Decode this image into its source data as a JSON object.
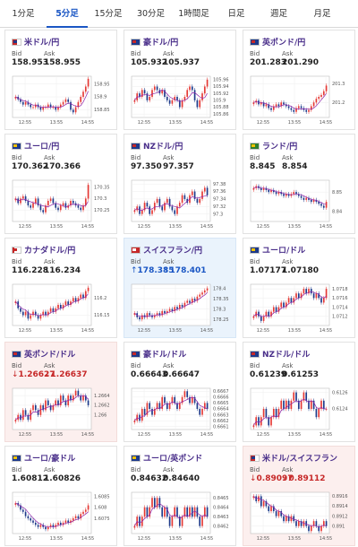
{
  "tabs": [
    {
      "label": "1分足",
      "active": false
    },
    {
      "label": "5分足",
      "active": true
    },
    {
      "label": "15分足",
      "active": false
    },
    {
      "label": "30分足",
      "active": false
    },
    {
      "label": "1時間足",
      "active": false
    },
    {
      "label": "日足",
      "active": false
    },
    {
      "label": "週足",
      "active": false
    },
    {
      "label": "月足",
      "active": false
    }
  ],
  "common": {
    "bid_label": "Bid",
    "ask_label": "Ask",
    "x_ticks": [
      "12:55",
      "13:55",
      "14:55"
    ]
  },
  "colors": {
    "up_candle": "#e53935",
    "down_candle": "#1e3a8a",
    "ma_line": "#8e24aa",
    "tab_active": "#1a56c4",
    "pair_name": "#4a2f8a"
  },
  "cards": [
    {
      "pair": "米ドル/円",
      "flag": "us",
      "bid": "158.953",
      "ask": "158.955",
      "trend": "",
      "highlight": "",
      "chart_data": {
        "type": "candlestick",
        "y_ticks": [
          "158.95",
          "158.9",
          "158.85"
        ],
        "ylim": [
          158.82,
          158.98
        ],
        "close": [
          158.9,
          158.89,
          158.88,
          158.87,
          158.88,
          158.87,
          158.86,
          158.86,
          158.87,
          158.86,
          158.85,
          158.86,
          158.86,
          158.87,
          158.86,
          158.86,
          158.85,
          158.86,
          158.87,
          158.88,
          158.89,
          158.88,
          158.85,
          158.84,
          158.86,
          158.88,
          158.9,
          158.92,
          158.94,
          158.97
        ]
      }
    },
    {
      "pair": "豪ドル/円",
      "flag": "au",
      "bid": "105.932",
      "ask": "105.937",
      "trend": "",
      "highlight": "",
      "chart_data": {
        "type": "candlestick",
        "y_ticks": [
          "105.96",
          "105.94",
          "105.92",
          "105.9",
          "105.88",
          "105.86"
        ],
        "ylim": [
          105.85,
          105.97
        ],
        "close": [
          105.9,
          105.92,
          105.91,
          105.93,
          105.92,
          105.9,
          105.91,
          105.93,
          105.94,
          105.93,
          105.92,
          105.93,
          105.91,
          105.9,
          105.89,
          105.9,
          105.91,
          105.9,
          105.88,
          105.9,
          105.91,
          105.93,
          105.94,
          105.93,
          105.9,
          105.88,
          105.9,
          105.92,
          105.94,
          105.96
        ]
      }
    },
    {
      "pair": "英ポンド/円",
      "flag": "uk",
      "bid": "201.283",
      "ask": "201.290",
      "trend": "",
      "highlight": "",
      "chart_data": {
        "type": "candlestick",
        "y_ticks": [
          "201.3",
          "201.2"
        ],
        "ylim": [
          201.12,
          201.34
        ],
        "close": [
          201.2,
          201.21,
          201.19,
          201.2,
          201.18,
          201.19,
          201.17,
          201.16,
          201.18,
          201.19,
          201.18,
          201.2,
          201.19,
          201.18,
          201.17,
          201.16,
          201.15,
          201.17,
          201.18,
          201.17,
          201.16,
          201.15,
          201.16,
          201.18,
          201.2,
          201.22,
          201.23,
          201.24,
          201.26,
          201.29
        ]
      }
    },
    {
      "pair": "ユーロ/円",
      "flag": "eu",
      "bid": "170.362",
      "ask": "170.366",
      "trend": "",
      "highlight": "",
      "chart_data": {
        "type": "candlestick",
        "y_ticks": [
          "170.35",
          "170.3",
          "170.25"
        ],
        "ylim": [
          170.2,
          170.38
        ],
        "close": [
          170.3,
          170.28,
          170.3,
          170.31,
          170.29,
          170.27,
          170.26,
          170.28,
          170.3,
          170.27,
          170.25,
          170.24,
          170.27,
          170.29,
          170.3,
          170.28,
          170.26,
          170.25,
          170.27,
          170.28,
          170.26,
          170.27,
          170.29,
          170.28,
          170.27,
          170.26,
          170.25,
          170.27,
          170.3,
          170.36
        ]
      }
    },
    {
      "pair": "NZドル/円",
      "flag": "nz",
      "bid": "97.350",
      "ask": "97.357",
      "trend": "",
      "highlight": "",
      "chart_data": {
        "type": "candlestick",
        "y_ticks": [
          "97.38",
          "97.36",
          "97.34",
          "97.32",
          "97.3"
        ],
        "ylim": [
          97.28,
          97.39
        ],
        "close": [
          97.31,
          97.32,
          97.3,
          97.31,
          97.33,
          97.32,
          97.3,
          97.31,
          97.33,
          97.34,
          97.32,
          97.31,
          97.33,
          97.34,
          97.32,
          97.31,
          97.3,
          97.32,
          97.33,
          97.35,
          97.34,
          97.33,
          97.35,
          97.36,
          97.34,
          97.33,
          97.34,
          97.36,
          97.37,
          97.35
        ]
      }
    },
    {
      "pair": "ランド/円",
      "flag": "za",
      "bid": "8.845",
      "ask": "8.854",
      "trend": "",
      "highlight": "",
      "chart_data": {
        "type": "candlestick",
        "y_ticks": [
          "8.85",
          "8.84"
        ],
        "ylim": [
          8.835,
          8.856
        ],
        "close": [
          8.852,
          8.853,
          8.852,
          8.851,
          8.852,
          8.851,
          8.85,
          8.851,
          8.85,
          8.849,
          8.85,
          8.849,
          8.848,
          8.849,
          8.848,
          8.849,
          8.85,
          8.849,
          8.848,
          8.847,
          8.846,
          8.847,
          8.846,
          8.845,
          8.846,
          8.845,
          8.844,
          8.843,
          8.842,
          8.845
        ]
      }
    },
    {
      "pair": "カナダドル/円",
      "flag": "ca",
      "bid": "116.228",
      "ask": "116.234",
      "trend": "",
      "highlight": "",
      "chart_data": {
        "type": "candlestick",
        "y_ticks": [
          "116.2",
          "116.15"
        ],
        "ylim": [
          116.12,
          116.24
        ],
        "close": [
          116.19,
          116.17,
          116.16,
          116.15,
          116.16,
          116.14,
          116.15,
          116.16,
          116.15,
          116.14,
          116.15,
          116.16,
          116.15,
          116.16,
          116.17,
          116.16,
          116.17,
          116.18,
          116.17,
          116.18,
          116.19,
          116.18,
          116.19,
          116.2,
          116.19,
          116.2,
          116.21,
          116.2,
          116.22,
          116.23
        ]
      }
    },
    {
      "pair": "スイスフラン/円",
      "flag": "ch",
      "bid": "178.385",
      "ask": "178.401",
      "trend": "up",
      "highlight": "blue",
      "chart_data": {
        "type": "candlestick",
        "y_ticks": [
          "178.4",
          "178.35",
          "178.3",
          "178.25"
        ],
        "ylim": [
          178.22,
          178.42
        ],
        "close": [
          178.28,
          178.26,
          178.25,
          178.27,
          178.26,
          178.28,
          178.27,
          178.26,
          178.27,
          178.28,
          178.27,
          178.29,
          178.28,
          178.29,
          178.3,
          178.29,
          178.31,
          178.3,
          178.32,
          178.31,
          178.33,
          178.34,
          178.33,
          178.35,
          178.34,
          178.36,
          178.37,
          178.38,
          178.39,
          178.4
        ]
      }
    },
    {
      "pair": "ユーロ/ドル",
      "flag": "eu",
      "bid": "1.07177",
      "ask": "1.07180",
      "trend": "",
      "highlight": "",
      "chart_data": {
        "type": "candlestick",
        "y_ticks": [
          "1.0718",
          "1.0716",
          "1.0714",
          "1.0712"
        ],
        "ylim": [
          1.071,
          1.0719
        ],
        "close": [
          1.0712,
          1.0713,
          1.0712,
          1.0711,
          1.0712,
          1.0713,
          1.0712,
          1.0713,
          1.0714,
          1.0713,
          1.0714,
          1.0715,
          1.0714,
          1.0715,
          1.0716,
          1.0715,
          1.0716,
          1.0717,
          1.0716,
          1.0717,
          1.0718,
          1.0717,
          1.0718,
          1.0717,
          1.0716,
          1.0717,
          1.0716,
          1.0715,
          1.0716,
          1.0718
        ]
      }
    },
    {
      "pair": "英ポンド/ドル",
      "flag": "uk",
      "bid": "1.26627",
      "ask": "1.26637",
      "trend": "down",
      "highlight": "red",
      "chart_data": {
        "type": "candlestick",
        "y_ticks": [
          "1.2664",
          "1.2662",
          "1.266"
        ],
        "ylim": [
          1.2657,
          1.26655
        ],
        "close": [
          1.2659,
          1.266,
          1.2659,
          1.2661,
          1.266,
          1.2659,
          1.2661,
          1.2662,
          1.2661,
          1.266,
          1.2662,
          1.2661,
          1.2663,
          1.2662,
          1.2661,
          1.2662,
          1.2663,
          1.2662,
          1.2664,
          1.2663,
          1.2662,
          1.2664,
          1.2663,
          1.2664,
          1.2665,
          1.2664,
          1.2663,
          1.2664,
          1.2663,
          1.2662
        ]
      }
    },
    {
      "pair": "豪ドル/ドル",
      "flag": "au",
      "bid": "0.66643",
      "ask": "0.66647",
      "trend": "",
      "highlight": "",
      "chart_data": {
        "type": "candlestick",
        "y_ticks": [
          "0.6667",
          "0.6666",
          "0.6665",
          "0.6664",
          "0.6663",
          "0.6662",
          "0.6661"
        ],
        "ylim": [
          0.66605,
          0.66675
        ],
        "close": [
          0.6662,
          0.6663,
          0.6662,
          0.6664,
          0.6663,
          0.6665,
          0.6664,
          0.6663,
          0.6664,
          0.6665,
          0.6664,
          0.6666,
          0.6665,
          0.6664,
          0.6665,
          0.6666,
          0.6665,
          0.6664,
          0.6665,
          0.6666,
          0.6667,
          0.6666,
          0.6665,
          0.6666,
          0.6665,
          0.6664,
          0.6663,
          0.6664,
          0.6665,
          0.6664
        ]
      }
    },
    {
      "pair": "NZドル/ドル",
      "flag": "nz",
      "bid": "0.61239",
      "ask": "0.61253",
      "trend": "",
      "highlight": "",
      "chart_data": {
        "type": "candlestick",
        "y_ticks": [
          "0.6126",
          "0.6124"
        ],
        "ylim": [
          0.61215,
          0.61265
        ],
        "close": [
          0.6122,
          0.6123,
          0.6122,
          0.6123,
          0.6124,
          0.6123,
          0.6122,
          0.6123,
          0.6124,
          0.6123,
          0.6124,
          0.6125,
          0.6124,
          0.6125,
          0.6124,
          0.6125,
          0.6126,
          0.6125,
          0.6124,
          0.6125,
          0.6126,
          0.6125,
          0.6124,
          0.6125,
          0.6124,
          0.6123,
          0.6124,
          0.6125,
          0.6124,
          0.6124
        ]
      }
    },
    {
      "pair": "ユーロ/豪ドル",
      "flag": "eu",
      "bid": "1.60812",
      "ask": "1.60826",
      "trend": "",
      "highlight": "",
      "chart_data": {
        "type": "candlestick",
        "y_ticks": [
          "1.6085",
          "1.608",
          "1.6075"
        ],
        "ylim": [
          1.6068,
          1.6087
        ],
        "close": [
          1.6082,
          1.6081,
          1.6079,
          1.6078,
          1.6076,
          1.6075,
          1.6074,
          1.6073,
          1.6072,
          1.6071,
          1.6072,
          1.6071,
          1.607,
          1.6071,
          1.6072,
          1.6071,
          1.6072,
          1.6073,
          1.6072,
          1.6073,
          1.6074,
          1.6073,
          1.6074,
          1.6075,
          1.6076,
          1.6075,
          1.6077,
          1.6078,
          1.6079,
          1.6081
        ]
      }
    },
    {
      "pair": "ユーロ/英ポンド",
      "flag": "eu",
      "bid": "0.84632",
      "ask": "0.84640",
      "trend": "",
      "highlight": "",
      "chart_data": {
        "type": "candlestick",
        "y_ticks": [
          "0.8465",
          "0.8464",
          "0.8463",
          "0.8462"
        ],
        "ylim": [
          0.84612,
          0.84656
        ],
        "close": [
          0.8462,
          0.8463,
          0.8462,
          0.8463,
          0.8464,
          0.8463,
          0.8464,
          0.8465,
          0.8464,
          0.8465,
          0.8464,
          0.8463,
          0.8464,
          0.8463,
          0.8462,
          0.8463,
          0.8464,
          0.8463,
          0.8462,
          0.8463,
          0.8464,
          0.8463,
          0.8464,
          0.8463,
          0.8464,
          0.8463,
          0.8462,
          0.8463,
          0.8464,
          0.8463
        ]
      }
    },
    {
      "pair": "米ドル/スイスフラン",
      "flag": "us",
      "bid": "0.89097",
      "ask": "0.89112",
      "trend": "down",
      "highlight": "red",
      "chart_data": {
        "type": "candlestick",
        "y_ticks": [
          "0.8916",
          "0.8914",
          "0.8912",
          "0.891"
        ],
        "ylim": [
          0.89085,
          0.89168
        ],
        "close": [
          0.8916,
          0.8915,
          0.8916,
          0.8914,
          0.8915,
          0.8914,
          0.8913,
          0.8914,
          0.8913,
          0.8912,
          0.8913,
          0.8912,
          0.8911,
          0.8912,
          0.8911,
          0.8912,
          0.8911,
          0.891,
          0.8911,
          0.891,
          0.8911,
          0.891,
          0.8909,
          0.891,
          0.8911,
          0.891,
          0.8909,
          0.891,
          0.8911,
          0.891
        ]
      }
    }
  ]
}
